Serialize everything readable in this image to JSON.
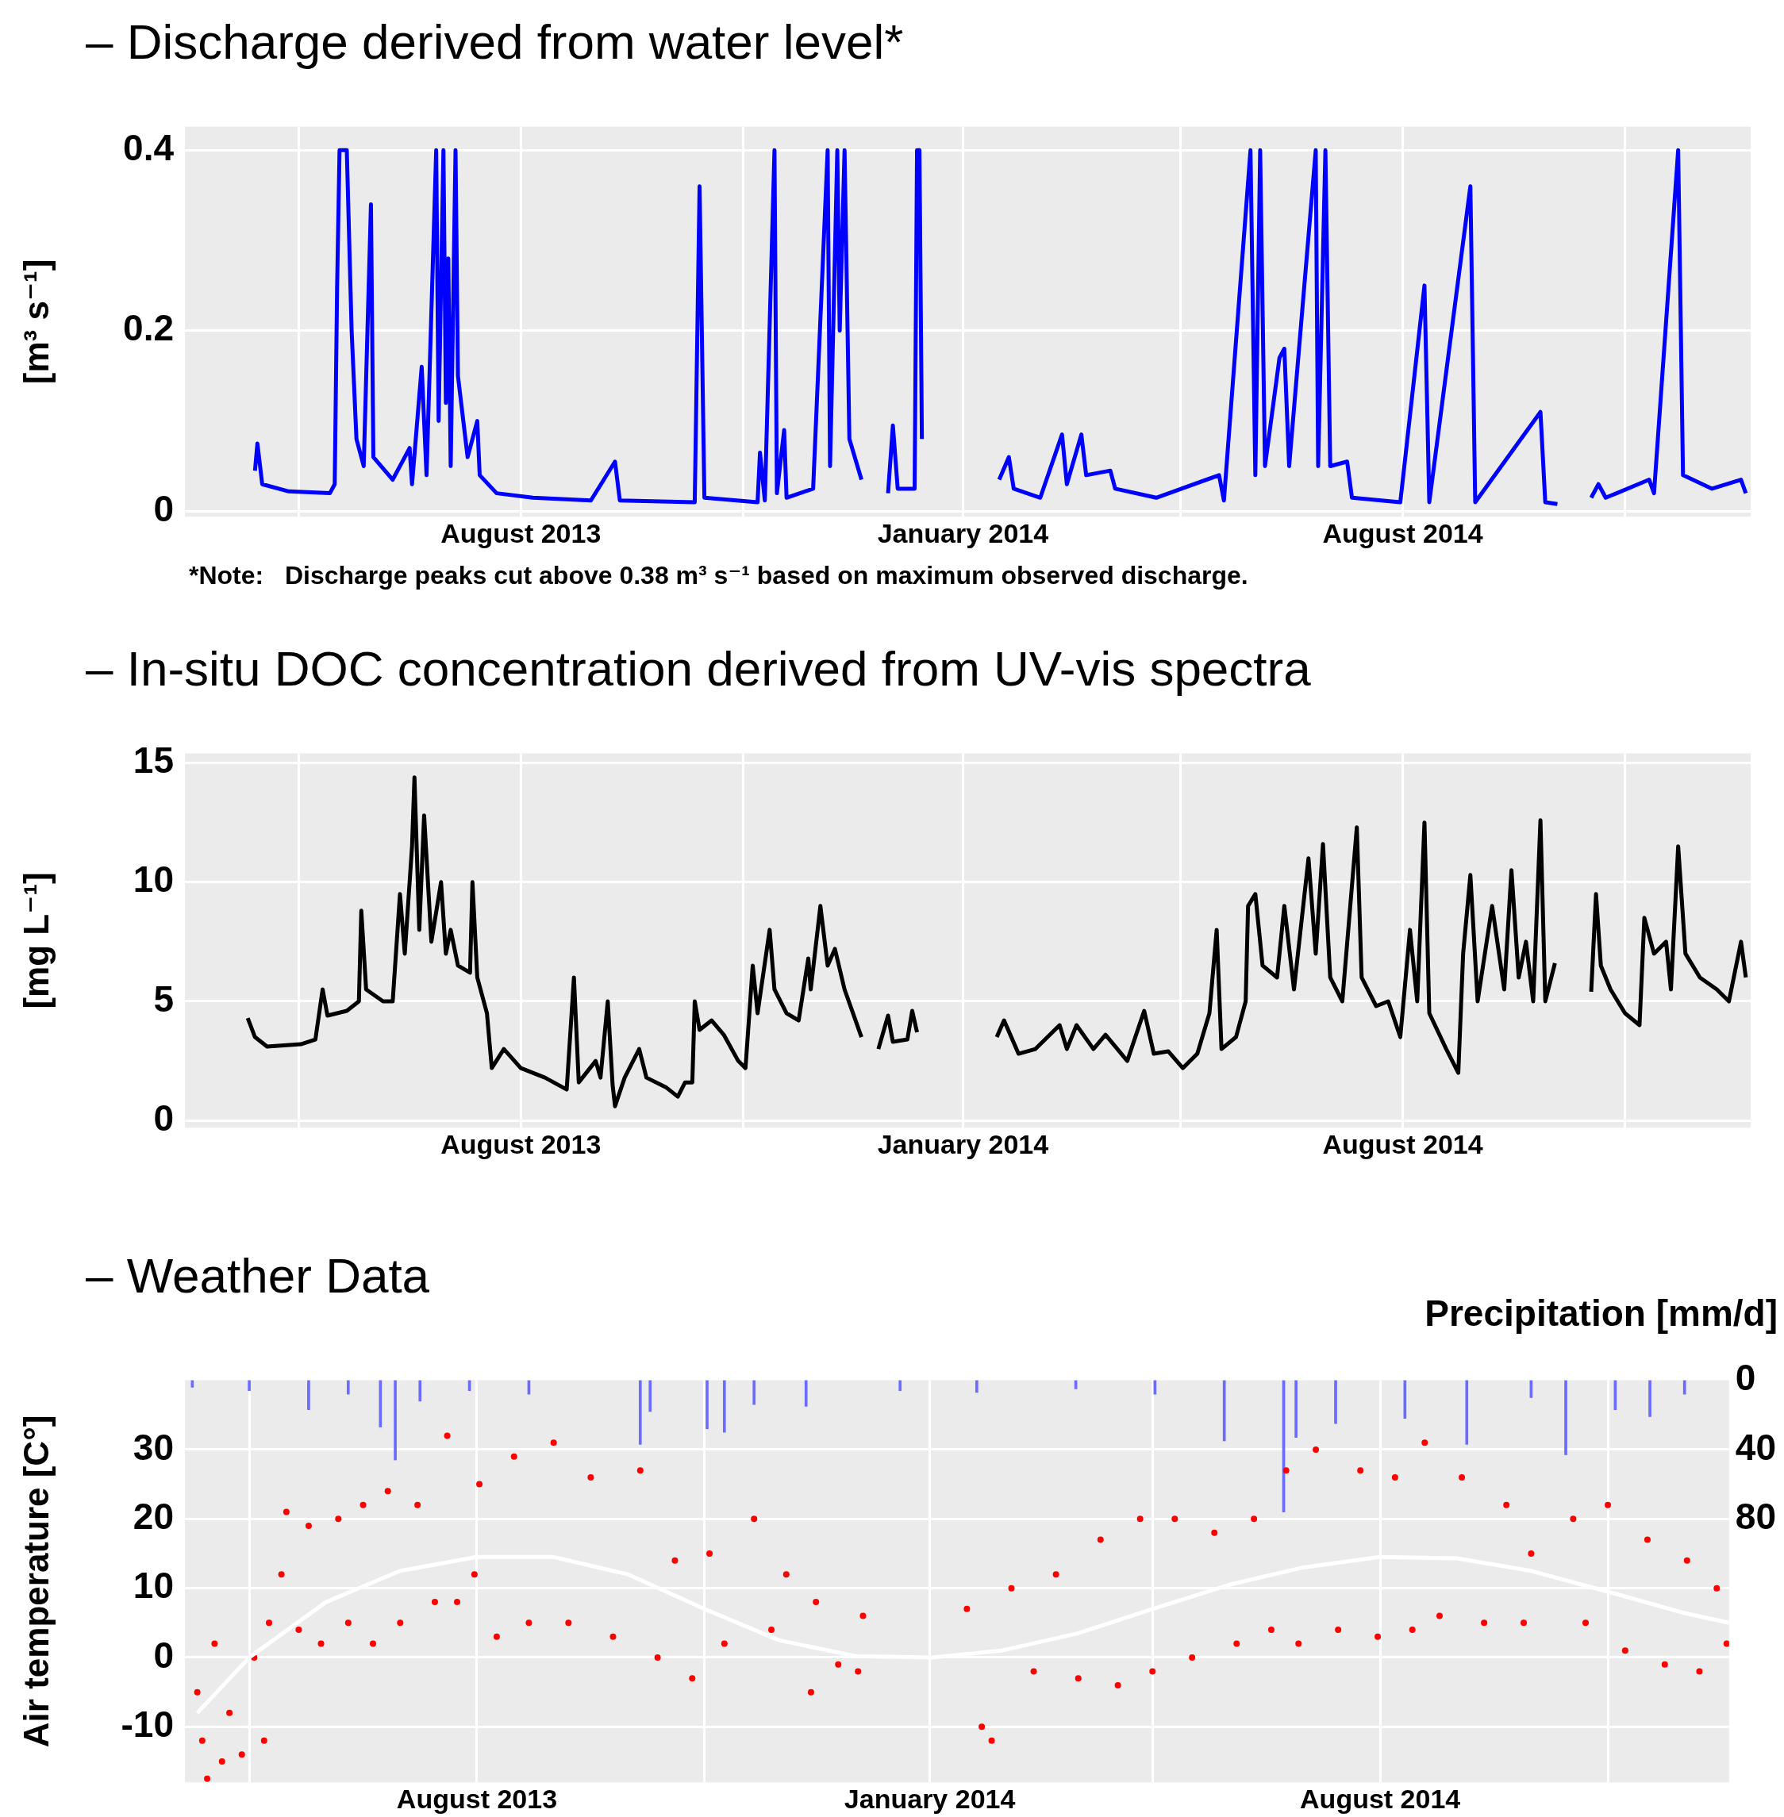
{
  "chart_data": [
    {
      "type": "line",
      "title": "– Discharge derived from water level*",
      "ylabel": "[m³ s⁻¹]",
      "annotations": [
        "*Note:   Discharge peaks cut above 0.38 m³ s⁻¹ based on maximum observed discharge."
      ],
      "x": [
        "2013-04-13",
        "2013-04-14",
        "2013-04-16",
        "2013-04-27",
        "2013-05-14",
        "2013-05-16",
        "2013-05-17",
        "2013-05-18",
        "2013-05-21",
        "2013-05-23",
        "2013-05-25",
        "2013-05-28",
        "2013-05-31",
        "2013-06-01",
        "2013-06-09",
        "2013-06-16",
        "2013-06-17",
        "2013-06-21",
        "2013-06-23",
        "2013-06-27",
        "2013-06-28",
        "2013-06-30",
        "2013-07-01",
        "2013-07-02",
        "2013-07-03",
        "2013-07-05",
        "2013-07-06",
        "2013-07-10",
        "2013-07-14",
        "2013-07-15",
        "2013-07-22",
        "2013-08-06",
        "2013-08-30",
        "2013-09-09",
        "2013-09-11",
        "2013-10-12",
        "2013-10-14",
        "2013-10-16",
        "2013-11-07",
        "2013-11-08",
        "2013-11-10",
        "2013-11-14",
        "2013-11-15",
        "2013-11-18",
        "2013-11-19",
        "2013-11-30",
        "2013-12-06",
        "2013-12-07",
        "2013-12-10",
        "2013-12-11",
        "2013-12-13",
        "2013-12-15",
        "2013-12-20",
        "2013-12-25",
        "2013-12-31",
        "2014-01-02",
        "2014-01-04",
        "2014-01-11",
        "2014-01-12",
        "2014-01-13",
        "2014-01-14",
        "2014-01-30",
        "2014-02-15",
        "2014-02-19",
        "2014-02-21",
        "2014-03-04",
        "2014-03-13",
        "2014-03-15",
        "2014-03-21",
        "2014-03-23",
        "2014-04-02",
        "2014-04-04",
        "2014-04-21",
        "2014-05-17",
        "2014-05-19",
        "2014-05-30",
        "2014-06-01",
        "2014-06-03",
        "2014-06-05",
        "2014-06-11",
        "2014-06-13",
        "2014-06-15",
        "2014-06-26",
        "2014-06-27",
        "2014-06-30",
        "2014-07-02",
        "2014-07-09",
        "2014-07-11",
        "2014-07-31",
        "2014-08-10",
        "2014-08-12",
        "2014-08-29",
        "2014-08-31",
        "2014-09-27",
        "2014-09-29",
        "2014-10-04",
        "2014-10-11",
        "2014-10-18",
        "2014-10-21",
        "2014-10-24",
        "2014-11-11",
        "2014-11-13",
        "2014-11-23",
        "2014-11-25",
        "2014-12-07",
        "2014-12-19",
        "2014-12-21"
      ],
      "series": [
        {
          "color": "#0000ff",
          "values": [
            0.045,
            0.075,
            0.03,
            0.022,
            0.02,
            0.03,
            0.25,
            0.4,
            0.4,
            0.2,
            0.08,
            0.05,
            0.34,
            0.06,
            0.035,
            0.07,
            0.03,
            0.16,
            0.04,
            0.4,
            0.1,
            0.4,
            0.12,
            0.28,
            0.05,
            0.4,
            0.15,
            0.06,
            0.1,
            0.04,
            0.02,
            0.015,
            0.012,
            0.055,
            0.012,
            0.01,
            0.36,
            0.015,
            0.01,
            0.065,
            0.012,
            0.4,
            0.02,
            0.09,
            0.015,
            0.025,
            0.4,
            0.05,
            0.4,
            0.2,
            0.4,
            0.08,
            0.035,
            null,
            0.02,
            0.095,
            0.025,
            0.025,
            0.4,
            0.4,
            0.08,
            null,
            0.035,
            0.06,
            0.025,
            0.015,
            0.085,
            0.03,
            0.085,
            0.04,
            0.045,
            0.025,
            0.015,
            0.04,
            0.012,
            0.4,
            0.04,
            0.4,
            0.05,
            0.17,
            0.18,
            0.05,
            0.4,
            0.05,
            0.4,
            0.05,
            0.055,
            0.015,
            0.01,
            0.25,
            0.01,
            0.36,
            0.01,
            0.11,
            0.01,
            0.008,
            null,
            0.015,
            0.03,
            0.015,
            0.035,
            0.02,
            0.4,
            0.04,
            0.025,
            0.035,
            0.02
          ]
        }
      ],
      "xlim": [
        "2013-03-15",
        "2014-12-23"
      ],
      "xticks": [
        {
          "value": "2013-05-01",
          "label": null
        },
        {
          "value": "2013-08-01",
          "label": "August 2013"
        },
        {
          "value": "2013-11-01",
          "label": null
        },
        {
          "value": "2014-01-31",
          "label": "January 2014"
        },
        {
          "value": "2014-05-01",
          "label": null
        },
        {
          "value": "2014-08-01",
          "label": "August 2014"
        },
        {
          "value": "2014-11-01",
          "label": null
        }
      ],
      "ylim": [
        -0.006,
        0.426
      ],
      "yticks": [
        0,
        0.2,
        0.4
      ],
      "grid": true
    },
    {
      "type": "line",
      "title": "– In-situ DOC concentration derived from UV-vis spectra",
      "ylabel": "[mg L⁻¹]",
      "x": [
        "2013-04-10",
        "2013-04-13",
        "2013-04-18",
        "2013-05-02",
        "2013-05-08",
        "2013-05-11",
        "2013-05-13",
        "2013-05-21",
        "2013-05-26",
        "2013-05-27",
        "2013-05-29",
        "2013-06-05",
        "2013-06-09",
        "2013-06-12",
        "2013-06-14",
        "2013-06-17",
        "2013-06-18",
        "2013-06-20",
        "2013-06-22",
        "2013-06-25",
        "2013-06-29",
        "2013-07-01",
        "2013-07-03",
        "2013-07-06",
        "2013-07-11",
        "2013-07-12",
        "2013-07-14",
        "2013-07-18",
        "2013-07-20",
        "2013-07-25",
        "2013-08-01",
        "2013-08-11",
        "2013-08-20",
        "2013-08-23",
        "2013-08-25",
        "2013-09-01",
        "2013-09-03",
        "2013-09-06",
        "2013-09-08",
        "2013-09-09",
        "2013-09-13",
        "2013-09-19",
        "2013-09-22",
        "2013-09-30",
        "2013-10-05",
        "2013-10-08",
        "2013-10-11",
        "2013-10-12",
        "2013-10-14",
        "2013-10-19",
        "2013-10-24",
        "2013-10-30",
        "2013-11-02",
        "2013-11-05",
        "2013-11-07",
        "2013-11-12",
        "2013-11-14",
        "2013-11-19",
        "2013-11-24",
        "2013-11-28",
        "2013-11-29",
        "2013-12-03",
        "2013-12-06",
        "2013-12-09",
        "2013-12-13",
        "2013-12-20",
        "2013-12-23",
        "2013-12-27",
        "2013-12-31",
        "2014-01-02",
        "2014-01-08",
        "2014-01-10",
        "2014-01-12",
        "2014-01-30",
        "2014-02-14",
        "2014-02-17",
        "2014-02-23",
        "2014-03-02",
        "2014-03-12",
        "2014-03-15",
        "2014-03-19",
        "2014-03-26",
        "2014-03-31",
        "2014-04-09",
        "2014-04-16",
        "2014-04-20",
        "2014-04-26",
        "2014-05-02",
        "2014-05-08",
        "2014-05-13",
        "2014-05-16",
        "2014-05-18",
        "2014-05-24",
        "2014-05-28",
        "2014-05-29",
        "2014-06-01",
        "2014-06-04",
        "2014-06-10",
        "2014-06-13",
        "2014-06-17",
        "2014-06-23",
        "2014-06-26",
        "2014-06-29",
        "2014-07-02",
        "2014-07-07",
        "2014-07-13",
        "2014-07-15",
        "2014-07-21",
        "2014-07-26",
        "2014-07-31",
        "2014-08-04",
        "2014-08-07",
        "2014-08-10",
        "2014-08-12",
        "2014-08-19",
        "2014-08-24",
        "2014-08-26",
        "2014-08-29",
        "2014-09-01",
        "2014-09-07",
        "2014-09-12",
        "2014-09-15",
        "2014-09-18",
        "2014-09-21",
        "2014-09-24",
        "2014-09-27",
        "2014-09-29",
        "2014-10-03",
        "2014-10-10",
        "2014-10-18",
        "2014-10-20",
        "2014-10-22",
        "2014-10-26",
        "2014-11-01",
        "2014-11-07",
        "2014-11-09",
        "2014-11-13",
        "2014-11-18",
        "2014-11-20",
        "2014-11-23",
        "2014-11-26",
        "2014-12-02",
        "2014-12-09",
        "2014-12-14",
        "2014-12-19",
        "2014-12-21"
      ],
      "series": [
        {
          "color": "#000000",
          "values": [
            4.3,
            3.5,
            3.1,
            3.2,
            3.4,
            5.5,
            4.4,
            4.6,
            5.0,
            8.8,
            5.5,
            5.0,
            5.0,
            9.5,
            7.0,
            11.5,
            14.4,
            8.0,
            12.8,
            7.5,
            10.0,
            7.0,
            8.0,
            6.5,
            6.2,
            10.0,
            6.0,
            4.5,
            2.2,
            3.0,
            2.2,
            1.8,
            1.3,
            6.0,
            1.6,
            2.5,
            1.8,
            5.0,
            1.5,
            0.6,
            1.8,
            3.0,
            1.8,
            1.4,
            1.0,
            1.6,
            1.6,
            5.0,
            3.8,
            4.2,
            3.6,
            2.5,
            2.2,
            6.5,
            4.5,
            8.0,
            5.5,
            4.5,
            4.2,
            6.8,
            5.5,
            9.0,
            6.5,
            7.2,
            5.5,
            3.5,
            null,
            3.0,
            4.4,
            3.3,
            3.4,
            4.6,
            3.7,
            null,
            3.5,
            4.2,
            2.8,
            3.0,
            4.0,
            3.0,
            4.0,
            3.0,
            3.6,
            2.5,
            4.6,
            2.8,
            2.9,
            2.2,
            2.8,
            4.5,
            8.0,
            3.0,
            3.5,
            5.0,
            9.0,
            9.5,
            6.5,
            6.0,
            9.0,
            5.5,
            11.0,
            7.0,
            11.6,
            6.0,
            5.0,
            12.3,
            6.0,
            4.8,
            5.0,
            3.5,
            8.0,
            5.0,
            12.5,
            4.5,
            3.0,
            2.0,
            7.0,
            10.3,
            5.0,
            9.0,
            5.5,
            10.5,
            6.0,
            7.5,
            5.0,
            12.6,
            5.0,
            6.6,
            null,
            5.4,
            9.5,
            6.5,
            5.5,
            4.5,
            4.0,
            8.5,
            7.0,
            7.5,
            5.5,
            11.5,
            7.0,
            6.0,
            5.5,
            5.0,
            7.5,
            6.0
          ]
        }
      ],
      "xlim": [
        "2013-03-15",
        "2014-12-23"
      ],
      "xticks": [
        {
          "value": "2013-05-01",
          "label": null
        },
        {
          "value": "2013-08-01",
          "label": "August 2013"
        },
        {
          "value": "2013-11-01",
          "label": null
        },
        {
          "value": "2014-01-31",
          "label": "January 2014"
        },
        {
          "value": "2014-05-01",
          "label": null
        },
        {
          "value": "2014-08-01",
          "label": "August 2014"
        },
        {
          "value": "2014-11-01",
          "label": null
        }
      ],
      "ylim": [
        -0.3,
        15.4
      ],
      "yticks": [
        0,
        5,
        10,
        15
      ],
      "grid": true
    },
    {
      "type": "scatter",
      "title": "– Weather Data",
      "ylabel": "Air temperature [C°]",
      "y2label": "Precipitation [mm/d]",
      "series": [
        {
          "type": "bar",
          "axis": "y2",
          "color": "#6b6bff",
          "x": [
            "2013-04-08",
            "2013-05-01",
            "2013-05-25",
            "2013-06-10",
            "2013-06-23",
            "2013-06-29",
            "2013-07-09",
            "2013-07-29",
            "2013-08-22",
            "2013-10-06",
            "2013-10-10",
            "2013-11-02",
            "2013-11-09",
            "2013-11-21",
            "2013-12-12",
            "2014-01-19",
            "2014-02-19",
            "2014-03-31",
            "2014-05-02",
            "2014-05-30",
            "2014-06-23",
            "2014-06-28",
            "2014-07-14",
            "2014-08-11",
            "2014-09-05",
            "2014-10-01",
            "2014-10-15",
            "2014-11-04",
            "2014-11-18",
            "2014-12-02"
          ],
          "values": [
            4,
            6,
            17,
            8,
            27,
            46,
            12,
            6,
            8,
            37,
            18,
            28,
            30,
            14,
            15,
            6,
            7,
            5,
            8,
            35,
            76,
            33,
            25,
            22,
            37,
            10,
            43,
            17,
            21,
            8
          ]
        },
        {
          "type": "scatter",
          "color": "#ff0000",
          "x": [
            "2013-04-10",
            "2013-04-12",
            "2013-04-14",
            "2013-04-17",
            "2013-04-20",
            "2013-04-23",
            "2013-04-28",
            "2013-05-03",
            "2013-05-07",
            "2013-05-09",
            "2013-05-14",
            "2013-05-16",
            "2013-05-21",
            "2013-05-25",
            "2013-05-30",
            "2013-06-06",
            "2013-06-10",
            "2013-06-16",
            "2013-06-20",
            "2013-06-26",
            "2013-07-01",
            "2013-07-08",
            "2013-07-15",
            "2013-07-20",
            "2013-07-24",
            "2013-07-31",
            "2013-08-02",
            "2013-08-09",
            "2013-08-16",
            "2013-08-22",
            "2013-09-01",
            "2013-09-07",
            "2013-09-16",
            "2013-09-25",
            "2013-10-06",
            "2013-10-13",
            "2013-10-20",
            "2013-10-27",
            "2013-11-03",
            "2013-11-09",
            "2013-11-21",
            "2013-11-28",
            "2013-12-04",
            "2013-12-14",
            "2013-12-16",
            "2013-12-25",
            "2014-01-02",
            "2014-01-04",
            "2014-02-15",
            "2014-02-21",
            "2014-02-25",
            "2014-03-05",
            "2014-03-14",
            "2014-03-23",
            "2014-04-01",
            "2014-04-10",
            "2014-04-17",
            "2014-04-26",
            "2014-05-01",
            "2014-05-10",
            "2014-05-17",
            "2014-05-26",
            "2014-06-04",
            "2014-06-11",
            "2014-06-18",
            "2014-06-24",
            "2014-06-29",
            "2014-07-06",
            "2014-07-15",
            "2014-07-24",
            "2014-07-31",
            "2014-08-07",
            "2014-08-14",
            "2014-08-19",
            "2014-08-25",
            "2014-09-03",
            "2014-09-12",
            "2014-09-21",
            "2014-09-28",
            "2014-10-01",
            "2014-10-18",
            "2014-10-23",
            "2014-11-01",
            "2014-11-08",
            "2014-11-17",
            "2014-11-24",
            "2014-12-03",
            "2014-12-08",
            "2014-12-15",
            "2014-12-19"
          ],
          "values": [
            -5,
            -12,
            -17.5,
            2,
            -15,
            -8,
            -14,
            0,
            -12,
            5,
            12,
            21,
            4,
            19,
            2,
            20,
            5,
            22,
            2,
            24,
            5,
            22,
            8,
            32,
            8,
            12,
            25,
            3,
            29,
            5,
            31,
            5,
            26,
            3,
            27,
            0,
            14,
            -3,
            15,
            2,
            20,
            4,
            12,
            -5,
            8,
            -1,
            -2,
            6,
            7,
            -10,
            -12,
            10,
            -2,
            12,
            -3,
            17,
            -4,
            20,
            -2,
            20,
            0,
            18,
            2,
            20,
            4,
            27,
            2,
            30,
            4,
            27,
            3,
            26,
            4,
            31,
            6,
            26,
            5,
            22,
            5,
            15,
            20,
            5,
            22,
            1,
            17,
            -1,
            14,
            -2,
            10,
            2
          ]
        },
        {
          "type": "line",
          "color": "#ffffff",
          "x": [
            "2013-04-10",
            "2013-05-01",
            "2013-06-01",
            "2013-07-01",
            "2013-08-01",
            "2013-09-01",
            "2013-10-01",
            "2013-11-01",
            "2013-12-01",
            "2014-01-01",
            "2014-02-01",
            "2014-03-01",
            "2014-04-01",
            "2014-05-01",
            "2014-06-01",
            "2014-07-01",
            "2014-08-01",
            "2014-09-01",
            "2014-10-01",
            "2014-11-01",
            "2014-12-01",
            "2014-12-20"
          ],
          "values": [
            -8,
            0,
            8,
            12.5,
            14.5,
            14.5,
            12,
            7,
            2.5,
            0.2,
            0,
            1,
            3.5,
            7,
            10.5,
            13,
            14.5,
            14.3,
            12.5,
            9.5,
            6.5,
            5
          ]
        }
      ],
      "xlim": [
        "2013-04-05",
        "2014-12-20"
      ],
      "xticks": [
        {
          "value": "2013-05-01",
          "label": null
        },
        {
          "value": "2013-08-01",
          "label": "August 2013"
        },
        {
          "value": "2013-11-01",
          "label": null
        },
        {
          "value": "2014-01-31",
          "label": "January 2014"
        },
        {
          "value": "2014-05-01",
          "label": null
        },
        {
          "value": "2014-08-01",
          "label": "August 2014"
        },
        {
          "value": "2014-11-01",
          "label": null
        }
      ],
      "ylim": [
        -18,
        40
      ],
      "yticks": [
        -10,
        0,
        10,
        20,
        30
      ],
      "y2lim": [
        232,
        0
      ],
      "y2ticks": [
        0,
        40,
        80
      ],
      "grid": true
    }
  ]
}
